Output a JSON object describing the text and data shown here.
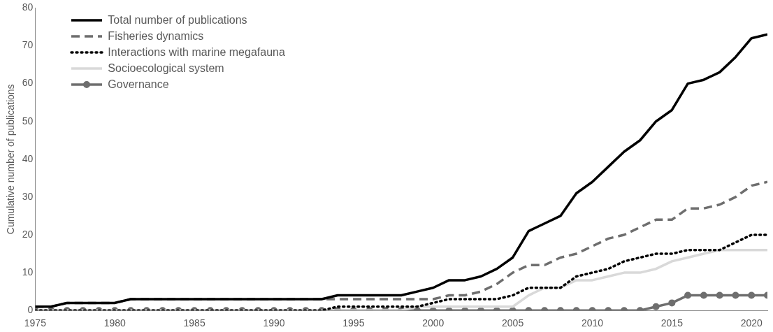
{
  "chart_data": {
    "type": "line",
    "ylabel": "Cumulative number of publications",
    "x": [
      1975,
      1976,
      1977,
      1978,
      1979,
      1980,
      1981,
      1982,
      1983,
      1984,
      1985,
      1986,
      1987,
      1988,
      1989,
      1990,
      1991,
      1992,
      1993,
      1994,
      1995,
      1996,
      1997,
      1998,
      1999,
      2000,
      2001,
      2002,
      2003,
      2004,
      2005,
      2006,
      2007,
      2008,
      2009,
      2010,
      2011,
      2012,
      2013,
      2014,
      2015,
      2016,
      2017,
      2018,
      2019,
      2020,
      2021
    ],
    "xlim": [
      1975,
      2021
    ],
    "xticks": [
      1975,
      1980,
      1985,
      1990,
      1995,
      2000,
      2005,
      2010,
      2015,
      2020
    ],
    "ylim": [
      0,
      80
    ],
    "yticks": [
      0,
      10,
      20,
      30,
      40,
      50,
      60,
      70,
      80
    ],
    "grid": false,
    "legend": "top left",
    "series": [
      {
        "name": "Total number of publications",
        "color": "#000000",
        "line_style": "solid",
        "marker": "none",
        "values": [
          1,
          1,
          2,
          2,
          2,
          2,
          3,
          3,
          3,
          3,
          3,
          3,
          3,
          3,
          3,
          3,
          3,
          3,
          3,
          4,
          4,
          4,
          4,
          4,
          5,
          6,
          8,
          8,
          9,
          11,
          14,
          21,
          23,
          25,
          31,
          34,
          38,
          42,
          45,
          50,
          53,
          60,
          61,
          63,
          67,
          72,
          73
        ]
      },
      {
        "name": "Fisheries dynamics",
        "color": "#6e6e6e",
        "line_style": "dashed",
        "marker": "none",
        "values": [
          1,
          1,
          2,
          2,
          2,
          2,
          3,
          3,
          3,
          3,
          3,
          3,
          3,
          3,
          3,
          3,
          3,
          3,
          3,
          3,
          3,
          3,
          3,
          3,
          3,
          3,
          4,
          4,
          5,
          7,
          10,
          12,
          12,
          14,
          15,
          17,
          19,
          20,
          22,
          24,
          24,
          27,
          27,
          28,
          30,
          33,
          34
        ]
      },
      {
        "name": "Interactions with marine megafauna",
        "color": "#000000",
        "line_style": "dotted",
        "marker": "none",
        "values": [
          0,
          0,
          0,
          0,
          0,
          0,
          0,
          0,
          0,
          0,
          0,
          0,
          0,
          0,
          0,
          0,
          0,
          0,
          0,
          1,
          1,
          1,
          1,
          1,
          1,
          2,
          3,
          3,
          3,
          3,
          4,
          6,
          6,
          6,
          9,
          10,
          11,
          13,
          14,
          15,
          15,
          16,
          16,
          16,
          18,
          20,
          20
        ]
      },
      {
        "name": "Socioecological system",
        "color": "#d9d9d9",
        "line_style": "solid",
        "marker": "none",
        "values": [
          0,
          0,
          0,
          0,
          0,
          0,
          0,
          0,
          0,
          0,
          0,
          0,
          0,
          0,
          0,
          0,
          0,
          0,
          0,
          0,
          0,
          0,
          0,
          0,
          1,
          1,
          1,
          1,
          1,
          1,
          1,
          4,
          6,
          6,
          8,
          8,
          9,
          10,
          10,
          11,
          13,
          14,
          15,
          16,
          16,
          16,
          16
        ]
      },
      {
        "name": "Governance",
        "color": "#6e6e6e",
        "line_style": "solid",
        "marker": "circle",
        "values": [
          0,
          0,
          0,
          0,
          0,
          0,
          0,
          0,
          0,
          0,
          0,
          0,
          0,
          0,
          0,
          0,
          0,
          0,
          0,
          0,
          0,
          0,
          0,
          0,
          0,
          0,
          0,
          0,
          0,
          0,
          0,
          0,
          0,
          0,
          0,
          0,
          0,
          0,
          0,
          1,
          2,
          4,
          4,
          4,
          4,
          4,
          4
        ]
      }
    ]
  }
}
